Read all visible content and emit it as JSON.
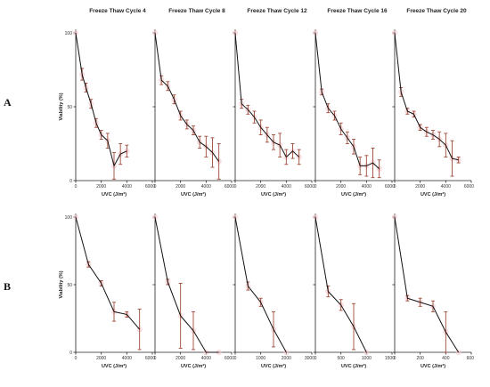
{
  "row_labels": [
    "A",
    "B"
  ],
  "colors": {
    "line": "#111111",
    "error_bar": "#a04a3a",
    "marker": "#f6c9cc"
  },
  "chart_data": [
    {
      "row": "A",
      "type": "line",
      "title": "Freeze Thaw Cycle 4",
      "xlabel": "UVC (J/m²)",
      "ylabel": "Viability (%)",
      "xlim": [
        0,
        6000
      ],
      "ylim": [
        0,
        100
      ],
      "xticks": [
        0,
        2000,
        4000,
        6000
      ],
      "yticks": [
        0,
        50,
        100
      ],
      "x": [
        0,
        500,
        800,
        1200,
        1600,
        2000,
        2500,
        3000,
        3500,
        4000
      ],
      "y": [
        100,
        72,
        63,
        52,
        39,
        31,
        27,
        10,
        18,
        20
      ],
      "err": [
        0,
        4,
        3,
        3,
        3,
        3,
        5,
        9,
        7,
        4
      ]
    },
    {
      "row": "A",
      "type": "line",
      "title": "Freeze Thaw Cycle 8",
      "xlabel": "UVC (J/m²)",
      "xlim": [
        0,
        6000
      ],
      "ylim": [
        0,
        100
      ],
      "xticks": [
        0,
        2000,
        4000,
        6000
      ],
      "yticks": [
        0,
        50,
        100
      ],
      "x": [
        0,
        500,
        1000,
        1500,
        2000,
        2500,
        3000,
        3500,
        4000,
        4500,
        5000
      ],
      "y": [
        100,
        68,
        64,
        55,
        44,
        38,
        34,
        26,
        23,
        19,
        13
      ],
      "err": [
        0,
        3,
        3,
        3,
        3,
        3,
        3,
        4,
        7,
        10,
        12
      ]
    },
    {
      "row": "A",
      "type": "line",
      "title": "Freeze Thaw Cycle 12",
      "xlabel": "UVC (J/m²)",
      "xlim": [
        0,
        6000
      ],
      "ylim": [
        0,
        100
      ],
      "xticks": [
        0,
        2000,
        4000,
        6000
      ],
      "yticks": [
        0,
        50,
        100
      ],
      "x": [
        0,
        500,
        1000,
        1500,
        2000,
        2500,
        3000,
        3500,
        4000,
        4500,
        5000
      ],
      "y": [
        100,
        52,
        48,
        43,
        36,
        31,
        26,
        24,
        16,
        20,
        16
      ],
      "err": [
        0,
        3,
        3,
        4,
        5,
        5,
        5,
        8,
        5,
        5,
        5
      ]
    },
    {
      "row": "A",
      "type": "line",
      "title": "Freeze Thaw Cycle 16",
      "xlabel": "UVC (J/m²)",
      "xlim": [
        0,
        6000
      ],
      "ylim": [
        0,
        100
      ],
      "xticks": [
        0,
        2000,
        4000,
        6000
      ],
      "yticks": [
        0,
        50,
        100
      ],
      "x": [
        0,
        500,
        1000,
        1500,
        2000,
        2500,
        3000,
        3500,
        4000,
        4500,
        5000
      ],
      "y": [
        100,
        60,
        49,
        44,
        35,
        29,
        23,
        10,
        10,
        12,
        8
      ],
      "err": [
        0,
        2,
        3,
        3,
        4,
        4,
        5,
        6,
        7,
        10,
        6
      ]
    },
    {
      "row": "A",
      "type": "line",
      "title": "Freeze Thaw Cycle 20",
      "xlabel": "UVC (J/m²)",
      "xlim": [
        0,
        6000
      ],
      "ylim": [
        0,
        100
      ],
      "xticks": [
        0,
        2000,
        4000,
        6000
      ],
      "yticks": [
        0,
        50,
        100
      ],
      "x": [
        0,
        500,
        1000,
        1500,
        2000,
        2500,
        3000,
        3500,
        4000,
        4500,
        5000
      ],
      "y": [
        100,
        60,
        47,
        45,
        36,
        33,
        31,
        28,
        24,
        15,
        14
      ],
      "err": [
        0,
        3,
        2,
        2,
        2,
        3,
        3,
        5,
        8,
        12,
        2
      ]
    },
    {
      "row": "B",
      "type": "line",
      "xlabel": "UVC (J/m²)",
      "ylabel": "Viability (%)",
      "xlim": [
        0,
        6000
      ],
      "ylim": [
        0,
        100
      ],
      "xticks": [
        0,
        2000,
        4000,
        6000
      ],
      "yticks": [
        0,
        50,
        100
      ],
      "x": [
        0,
        1000,
        2000,
        3000,
        4000,
        5000
      ],
      "y": [
        100,
        65,
        51,
        30,
        28,
        17
      ],
      "err": [
        0,
        2,
        2,
        7,
        2,
        15
      ]
    },
    {
      "row": "B",
      "type": "line",
      "xlabel": "UVC (J/m²)",
      "xlim": [
        0,
        6000
      ],
      "ylim": [
        0,
        100
      ],
      "xticks": [
        0,
        2000,
        4000,
        6000
      ],
      "yticks": [
        0,
        50,
        100
      ],
      "x": [
        0,
        1000,
        2000,
        3000,
        4000,
        5000
      ],
      "y": [
        100,
        52,
        27,
        16,
        0,
        0
      ],
      "err": [
        0,
        2,
        24,
        14,
        0,
        0
      ]
    },
    {
      "row": "B",
      "type": "line",
      "xlabel": "UVC (J/m²)",
      "xlim": [
        0,
        3000
      ],
      "ylim": [
        0,
        100
      ],
      "xticks": [
        0,
        1000,
        2000,
        3000
      ],
      "yticks": [
        0,
        50,
        100
      ],
      "x": [
        0,
        500,
        1000,
        1500,
        2000
      ],
      "y": [
        100,
        49,
        37,
        17,
        0
      ],
      "err": [
        0,
        3,
        3,
        13,
        0
      ]
    },
    {
      "row": "B",
      "type": "line",
      "xlabel": "UVC (J/m²)",
      "xlim": [
        0,
        1500
      ],
      "ylim": [
        0,
        100
      ],
      "xticks": [
        0,
        500,
        1000,
        1500
      ],
      "yticks": [
        0,
        50,
        100
      ],
      "x": [
        0,
        250,
        500,
        750,
        1000
      ],
      "y": [
        100,
        45,
        35,
        19,
        0
      ],
      "err": [
        0,
        4,
        4,
        17,
        0
      ]
    },
    {
      "row": "B",
      "type": "line",
      "xlabel": "UVC (J/m²)",
      "xlim": [
        0,
        600
      ],
      "ylim": [
        0,
        100
      ],
      "xticks": [
        0,
        200,
        400,
        600
      ],
      "yticks": [
        0,
        50,
        100
      ],
      "x": [
        0,
        100,
        200,
        300,
        400,
        500
      ],
      "y": [
        100,
        40,
        37,
        34,
        15,
        0
      ],
      "err": [
        0,
        2,
        3,
        4,
        15,
        0
      ]
    }
  ]
}
